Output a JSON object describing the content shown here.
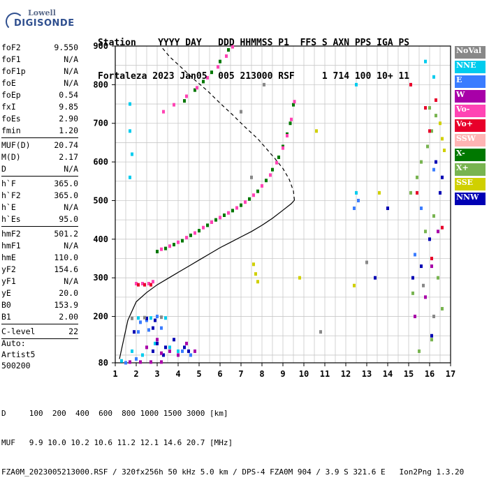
{
  "logo": {
    "line1": "Lowell",
    "line2": "DIGISONDE"
  },
  "header": {
    "row1": "Station    YYYY DAY   DDD HHMMSS P1  FFS S AXN PPS IGA PS",
    "row2": "Fortaleza 2023 Jan05  005 213000 RSF     1 714 100 10+ 11"
  },
  "params": [
    {
      "label": "foF2",
      "value": "9.550"
    },
    {
      "label": "foF1",
      "value": "N/A"
    },
    {
      "label": "foF1p",
      "value": "N/A"
    },
    {
      "label": "foE",
      "value": "N/A"
    },
    {
      "label": "foEp",
      "value": "0.54"
    },
    {
      "label": "fxI",
      "value": "9.85"
    },
    {
      "label": "foEs",
      "value": "2.90"
    },
    {
      "label": "fmin",
      "value": "1.20"
    },
    {
      "sep": true
    },
    {
      "label": "MUF(D)",
      "value": "20.74"
    },
    {
      "label": "M(D)",
      "value": "2.17"
    },
    {
      "label": "D",
      "value": "N/A"
    },
    {
      "sep": true
    },
    {
      "label": "h`F",
      "value": "365.0"
    },
    {
      "label": "h`F2",
      "value": "365.0"
    },
    {
      "label": "h`E",
      "value": "N/A"
    },
    {
      "label": "h`Es",
      "value": "95.0"
    },
    {
      "sep": true
    },
    {
      "label": "hmF2",
      "value": "501.2"
    },
    {
      "label": "hmF1",
      "value": "N/A"
    },
    {
      "label": "hmE",
      "value": "110.0"
    },
    {
      "label": "yF2",
      "value": "154.6"
    },
    {
      "label": "yF1",
      "value": "N/A"
    },
    {
      "label": "yE",
      "value": "20.0"
    },
    {
      "label": "B0",
      "value": "153.9"
    },
    {
      "label": "B1",
      "value": "2.00"
    },
    {
      "sep": true
    },
    {
      "label": "C-level",
      "value": "22"
    },
    {
      "sep": true
    }
  ],
  "autoscale": {
    "line1": "Auto:",
    "line2": "Artist5",
    "line3": "500200"
  },
  "bottom": {
    "d_row": "D     100  200  400  600  800 1000 1500 3000 [km]",
    "muf_row": "MUF   9.9 10.0 10.2 10.6 11.2 12.1 14.6 20.7 [MHz]",
    "file_row": "FZA0M_2023005213000.RSF / 320fx256h 50 kHz 5.0 km / DPS-4 FZA0M 904 / 3.9 S 321.6 E   Ion2Png 1.3.20"
  },
  "legend": [
    {
      "label": "NoVal",
      "color": "#888888"
    },
    {
      "label": "NNE",
      "color": "#00ccee"
    },
    {
      "label": "E",
      "color": "#3a7cff"
    },
    {
      "label": "W",
      "color": "#a800a8"
    },
    {
      "label": "Vo-",
      "color": "#ff44b4"
    },
    {
      "label": "Vo+",
      "color": "#e8002a"
    },
    {
      "label": "SSW",
      "color": "#ffb4b4"
    },
    {
      "label": "X-",
      "color": "#007800"
    },
    {
      "label": "X+",
      "color": "#78b450"
    },
    {
      "label": "SSE",
      "color": "#d0d000"
    },
    {
      "label": "NNW",
      "color": "#0000b4"
    }
  ],
  "chart_data": {
    "type": "scatter",
    "title": "",
    "xlabel": "",
    "ylabel": "",
    "xlim": [
      1,
      17
    ],
    "ylim": [
      80,
      900
    ],
    "x_ticks": [
      "1",
      "2",
      "3",
      "4",
      "5",
      "6",
      "7",
      "8",
      "9",
      "10",
      "11",
      "12",
      "13",
      "14",
      "15",
      "16",
      "17"
    ],
    "y_ticks": [
      "80",
      "200",
      "300",
      "400",
      "500",
      "600",
      "700",
      "800",
      "900"
    ],
    "grid": true,
    "series": [
      {
        "name": "X-",
        "color": "#007800",
        "style": "points",
        "points": [
          [
            3.0,
            368
          ],
          [
            3.4,
            376
          ],
          [
            3.8,
            386
          ],
          [
            4.2,
            396
          ],
          [
            4.6,
            410
          ],
          [
            5.0,
            422
          ],
          [
            5.4,
            436
          ],
          [
            5.8,
            450
          ],
          [
            6.2,
            462
          ],
          [
            6.6,
            474
          ],
          [
            7.0,
            488
          ],
          [
            7.4,
            504
          ],
          [
            7.8,
            524
          ],
          [
            8.2,
            552
          ],
          [
            8.5,
            580
          ],
          [
            8.8,
            612
          ],
          [
            9.0,
            640
          ],
          [
            9.2,
            672
          ],
          [
            9.35,
            700
          ],
          [
            9.5,
            748
          ],
          [
            4.3,
            758
          ],
          [
            4.8,
            786
          ],
          [
            5.2,
            808
          ],
          [
            5.6,
            832
          ],
          [
            6.0,
            860
          ],
          [
            6.4,
            890
          ]
        ]
      },
      {
        "name": "Vo-",
        "color": "#ff44b4",
        "style": "points",
        "points": [
          [
            3.2,
            374
          ],
          [
            3.6,
            382
          ],
          [
            4.0,
            392
          ],
          [
            4.4,
            404
          ],
          [
            4.8,
            416
          ],
          [
            5.2,
            430
          ],
          [
            5.6,
            444
          ],
          [
            6.0,
            456
          ],
          [
            6.4,
            468
          ],
          [
            6.8,
            481
          ],
          [
            7.2,
            496
          ],
          [
            7.6,
            514
          ],
          [
            8.0,
            538
          ],
          [
            8.4,
            566
          ],
          [
            8.7,
            598
          ],
          [
            9.0,
            636
          ],
          [
            9.2,
            668
          ],
          [
            9.4,
            710
          ],
          [
            9.55,
            756
          ],
          [
            3.3,
            730
          ],
          [
            3.8,
            748
          ],
          [
            4.4,
            770
          ],
          [
            4.9,
            792
          ],
          [
            5.4,
            818
          ],
          [
            5.9,
            846
          ],
          [
            6.3,
            874
          ],
          [
            6.6,
            898
          ],
          [
            2.0,
            285
          ],
          [
            2.3,
            285
          ],
          [
            2.6,
            285
          ],
          [
            2.8,
            290
          ]
        ]
      },
      {
        "name": "X+",
        "color": "#78b450",
        "style": "points",
        "points": [
          [
            15.1,
            520
          ],
          [
            15.4,
            560
          ],
          [
            15.6,
            600
          ],
          [
            15.9,
            640
          ],
          [
            16.1,
            680
          ],
          [
            16.3,
            720
          ],
          [
            16.0,
            740
          ],
          [
            16.2,
            460
          ],
          [
            15.8,
            420
          ],
          [
            16.4,
            300
          ],
          [
            15.2,
            260
          ],
          [
            16.6,
            220
          ],
          [
            16.1,
            140
          ],
          [
            15.5,
            110
          ]
        ]
      },
      {
        "name": "NNE",
        "color": "#00ccee",
        "style": "points",
        "points": [
          [
            1.7,
            750
          ],
          [
            1.7,
            680
          ],
          [
            1.8,
            620
          ],
          [
            1.7,
            560
          ],
          [
            12.5,
            520
          ],
          [
            12.5,
            800
          ],
          [
            16.2,
            820
          ],
          [
            15.8,
            860
          ],
          [
            2.1,
            196
          ],
          [
            2.7,
            196
          ],
          [
            3.4,
            196
          ],
          [
            1.8,
            110
          ],
          [
            2.3,
            100
          ],
          [
            2.9,
            130
          ],
          [
            3.6,
            120
          ],
          [
            4.0,
            110
          ],
          [
            1.3,
            85
          ]
        ]
      },
      {
        "name": "E",
        "color": "#3a7cff",
        "style": "points",
        "points": [
          [
            2.2,
            185
          ],
          [
            2.5,
            190
          ],
          [
            3.0,
            200
          ],
          [
            2.1,
            160
          ],
          [
            2.6,
            165
          ],
          [
            3.2,
            170
          ],
          [
            4.6,
            100
          ],
          [
            4.2,
            110
          ],
          [
            2.0,
            90
          ],
          [
            1.5,
            80
          ],
          [
            15.3,
            360
          ],
          [
            15.6,
            480
          ],
          [
            16.2,
            580
          ],
          [
            12.6,
            500
          ],
          [
            12.4,
            480
          ]
        ]
      },
      {
        "name": "NNW",
        "color": "#0000b4",
        "style": "points",
        "points": [
          [
            3.0,
            130
          ],
          [
            3.4,
            120
          ],
          [
            3.8,
            140
          ],
          [
            4.3,
            120
          ],
          [
            4.5,
            110
          ],
          [
            2.8,
            110
          ],
          [
            3.3,
            100
          ],
          [
            2.5,
            195
          ],
          [
            2.9,
            190
          ],
          [
            1.9,
            160
          ],
          [
            2.8,
            170
          ],
          [
            15.2,
            300
          ],
          [
            15.6,
            330
          ],
          [
            16.0,
            400
          ],
          [
            16.5,
            520
          ],
          [
            14.0,
            480
          ],
          [
            16.3,
            600
          ],
          [
            16.6,
            560
          ],
          [
            13.4,
            300
          ],
          [
            16.1,
            150
          ]
        ]
      },
      {
        "name": "W",
        "color": "#a800a8",
        "style": "points",
        "points": [
          [
            3.2,
            105
          ],
          [
            3.6,
            110
          ],
          [
            4.0,
            100
          ],
          [
            4.4,
            130
          ],
          [
            4.8,
            110
          ],
          [
            3.0,
            140
          ],
          [
            2.5,
            120
          ],
          [
            1.7,
            82
          ],
          [
            2.2,
            82
          ],
          [
            2.7,
            82
          ],
          [
            3.2,
            82
          ],
          [
            15.3,
            200
          ],
          [
            16.1,
            330
          ],
          [
            15.8,
            250
          ],
          [
            16.4,
            420
          ]
        ]
      },
      {
        "name": "SSE",
        "color": "#d0d000",
        "style": "points",
        "points": [
          [
            7.6,
            335
          ],
          [
            7.7,
            310
          ],
          [
            7.8,
            290
          ],
          [
            16.6,
            660
          ],
          [
            16.5,
            700
          ],
          [
            16.7,
            630
          ],
          [
            12.4,
            280
          ],
          [
            13.6,
            520
          ],
          [
            9.8,
            300
          ],
          [
            10.6,
            680
          ]
        ]
      },
      {
        "name": "Vo+",
        "color": "#e8002a",
        "style": "points",
        "points": [
          [
            2.1,
            282
          ],
          [
            2.4,
            282
          ],
          [
            2.7,
            282
          ],
          [
            16.0,
            680
          ],
          [
            15.8,
            740
          ],
          [
            16.3,
            760
          ],
          [
            15.1,
            800
          ],
          [
            15.4,
            520
          ],
          [
            16.6,
            430
          ],
          [
            16.1,
            350
          ]
        ]
      },
      {
        "name": "NoVal",
        "color": "#888888",
        "style": "points",
        "points": [
          [
            1.8,
            195
          ],
          [
            2.4,
            197
          ],
          [
            3.2,
            198
          ],
          [
            7.0,
            730
          ],
          [
            8.1,
            800
          ],
          [
            10.8,
            160
          ],
          [
            13.0,
            340
          ],
          [
            7.5,
            560
          ],
          [
            16.2,
            200
          ],
          [
            15.7,
            280
          ]
        ]
      },
      {
        "name": "N(h) solid",
        "color": "#000000",
        "style": "solid",
        "points": [
          [
            1.2,
            90
          ],
          [
            1.6,
            190
          ],
          [
            2.0,
            238
          ],
          [
            2.5,
            262
          ],
          [
            3.0,
            282
          ],
          [
            3.5,
            298
          ],
          [
            4.0,
            314
          ],
          [
            4.5,
            330
          ],
          [
            5.0,
            346
          ],
          [
            5.5,
            362
          ],
          [
            6.0,
            378
          ],
          [
            6.5,
            392
          ],
          [
            7.0,
            406
          ],
          [
            7.5,
            420
          ],
          [
            8.0,
            436
          ],
          [
            8.5,
            454
          ],
          [
            9.0,
            475
          ],
          [
            9.4,
            492
          ],
          [
            9.55,
            501
          ]
        ]
      },
      {
        "name": "N(h) dashed",
        "color": "#000000",
        "style": "dashed",
        "points": [
          [
            9.55,
            501
          ],
          [
            9.5,
            525
          ],
          [
            9.3,
            555
          ],
          [
            9.0,
            583
          ],
          [
            8.6,
            610
          ],
          [
            8.2,
            635
          ],
          [
            7.8,
            660
          ],
          [
            7.2,
            690
          ],
          [
            6.6,
            722
          ],
          [
            6.0,
            752
          ],
          [
            5.4,
            784
          ],
          [
            4.8,
            812
          ],
          [
            4.2,
            842
          ],
          [
            3.6,
            872
          ],
          [
            3.2,
            898
          ]
        ]
      }
    ]
  }
}
